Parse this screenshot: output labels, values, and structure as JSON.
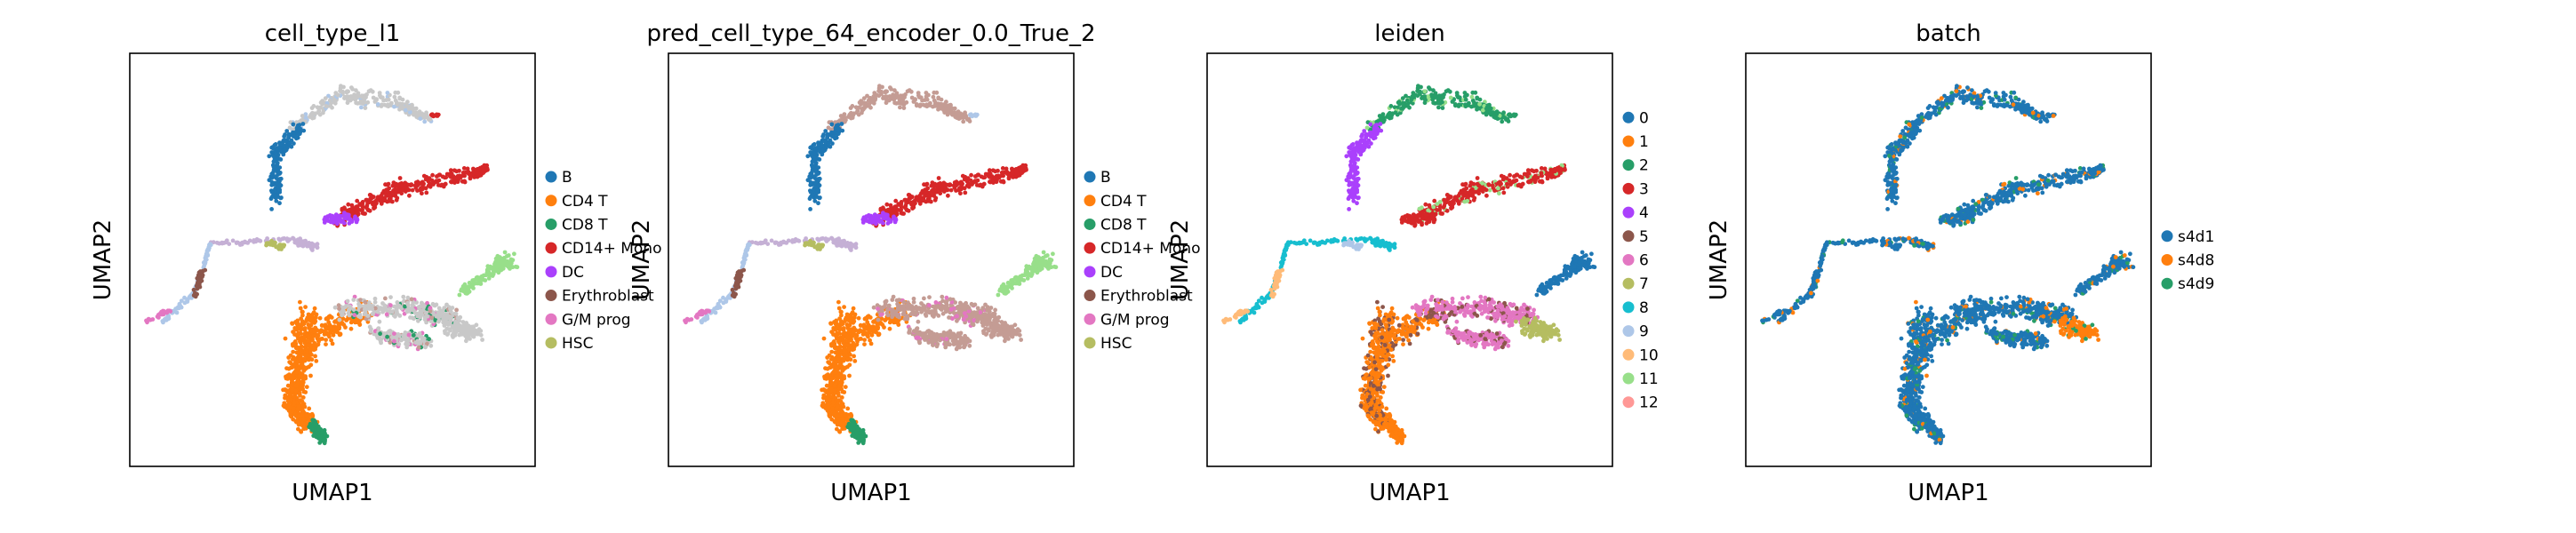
{
  "figure": {
    "background": "#ffffff",
    "axis_color": "#000000"
  },
  "chart_data": [
    {
      "type": "scatter",
      "title": "cell_type_l1",
      "xlabel": "UMAP1",
      "ylabel": "UMAP2",
      "grid": false,
      "legend": "right",
      "legend_entries": [
        {
          "label": "B",
          "color": "#1f77b4"
        },
        {
          "label": "CD4 T",
          "color": "#ff7f0e"
        },
        {
          "label": "CD8 T",
          "color": "#279e68"
        },
        {
          "label": "CD14+ Mono",
          "color": "#d62728"
        },
        {
          "label": "DC",
          "color": "#aa40fc"
        },
        {
          "label": "Erythroblast",
          "color": "#8c564b"
        },
        {
          "label": "G/M prog",
          "color": "#e377c2"
        },
        {
          "label": "HSC",
          "color": "#b5bd61"
        }
      ]
    },
    {
      "type": "scatter",
      "title": "pred_cell_type_64_encoder_0.0_True_2",
      "xlabel": "UMAP1",
      "ylabel": "UMAP2",
      "grid": false,
      "legend": "right",
      "legend_entries": [
        {
          "label": "B",
          "color": "#1f77b4"
        },
        {
          "label": "CD4 T",
          "color": "#ff7f0e"
        },
        {
          "label": "CD8 T",
          "color": "#279e68"
        },
        {
          "label": "CD14+ Mono",
          "color": "#d62728"
        },
        {
          "label": "DC",
          "color": "#aa40fc"
        },
        {
          "label": "Erythroblast",
          "color": "#8c564b"
        },
        {
          "label": "G/M prog",
          "color": "#e377c2"
        },
        {
          "label": "HSC",
          "color": "#b5bd61"
        }
      ]
    },
    {
      "type": "scatter",
      "title": "leiden",
      "xlabel": "UMAP1",
      "ylabel": "UMAP2",
      "grid": false,
      "legend": "right",
      "legend_entries": [
        {
          "label": "0",
          "color": "#1f77b4"
        },
        {
          "label": "1",
          "color": "#ff7f0e"
        },
        {
          "label": "2",
          "color": "#279e68"
        },
        {
          "label": "3",
          "color": "#d62728"
        },
        {
          "label": "4",
          "color": "#aa40fc"
        },
        {
          "label": "5",
          "color": "#8c564b"
        },
        {
          "label": "6",
          "color": "#e377c2"
        },
        {
          "label": "7",
          "color": "#b5bd61"
        },
        {
          "label": "8",
          "color": "#17becf"
        },
        {
          "label": "9",
          "color": "#aec7e8"
        },
        {
          "label": "10",
          "color": "#ffbb78"
        },
        {
          "label": "11",
          "color": "#98df8a"
        },
        {
          "label": "12",
          "color": "#ff9896"
        }
      ]
    },
    {
      "type": "scatter",
      "title": "batch",
      "xlabel": "UMAP1",
      "ylabel": "UMAP2",
      "grid": false,
      "legend": "right",
      "legend_entries": [
        {
          "label": "s4d1",
          "color": "#1f77b4"
        },
        {
          "label": "s4d8",
          "color": "#ff7f0e"
        },
        {
          "label": "s4d9",
          "color": "#279e68"
        }
      ]
    }
  ]
}
